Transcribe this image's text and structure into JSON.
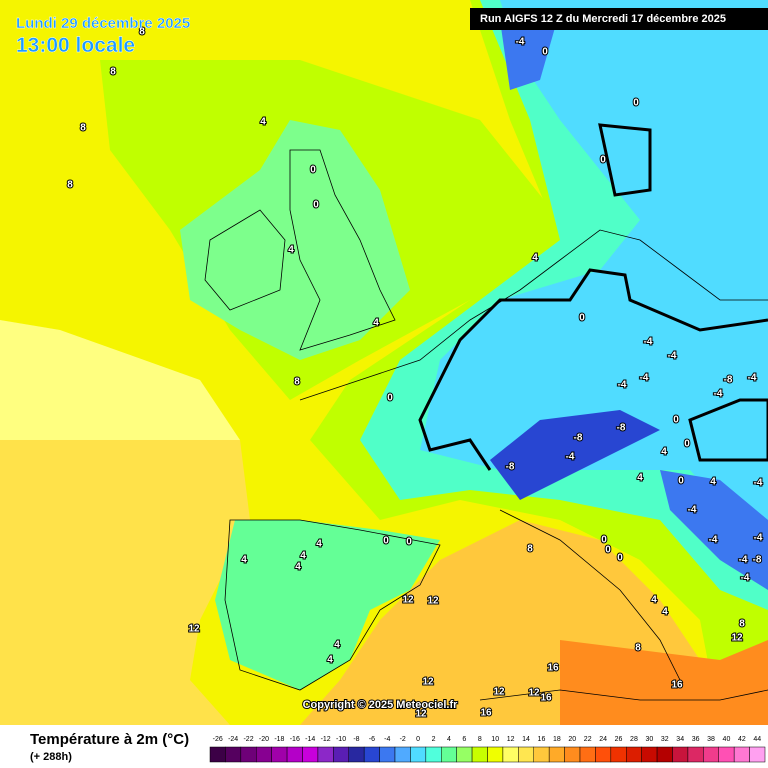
{
  "header": {
    "date": "Lundi 29 décembre 2025",
    "time": "13:00 locale",
    "run": "Run AIGFS 12 Z du Mercredi 17 décembre 2025",
    "copyright": "Copyright © 2025 Meteociel.fr"
  },
  "legend": {
    "title": "Température à 2m (°C)",
    "lead": "(+ 288h)",
    "ticks": [
      -26,
      -24,
      -22,
      -20,
      -18,
      -16,
      -14,
      -12,
      -10,
      -8,
      -6,
      -4,
      -2,
      0,
      2,
      4,
      6,
      8,
      10,
      12,
      14,
      16,
      18,
      20,
      22,
      24,
      26,
      28,
      30,
      32,
      34,
      36,
      38,
      40,
      42,
      44
    ],
    "colors": [
      "#3c0046",
      "#55005f",
      "#6e0078",
      "#870091",
      "#a000aa",
      "#b400c8",
      "#c800dc",
      "#8c28c8",
      "#5a1eb4",
      "#2828a0",
      "#2846d2",
      "#3c78f0",
      "#50aaff",
      "#50dcff",
      "#50ffdc",
      "#64ff96",
      "#96ff64",
      "#c8ff00",
      "#f0ff00",
      "#ffff64",
      "#ffe650",
      "#ffc83c",
      "#ffaa28",
      "#ff8c1e",
      "#ff6e14",
      "#ff500a",
      "#f03200",
      "#dc1e00",
      "#c80a00",
      "#b40000",
      "#c8143c",
      "#dc2864",
      "#f03c8c",
      "#ff50b4",
      "#ff78d2",
      "#ffa0f0"
    ]
  },
  "contour_labels": [
    8,
    8,
    8,
    8,
    4,
    0,
    0,
    4,
    4,
    8,
    -4,
    0,
    0,
    0,
    4,
    0,
    0,
    -4,
    -4,
    -4,
    -4,
    -4,
    -8,
    -4,
    -8,
    -8,
    -4,
    -8,
    0,
    0,
    4,
    4,
    0,
    4,
    -4,
    -4,
    -4,
    -4,
    -4,
    -4,
    -8,
    4,
    4,
    4,
    4,
    0,
    0,
    12,
    12,
    12,
    4,
    4,
    8,
    0,
    0,
    0,
    4,
    4,
    8,
    12,
    8,
    16,
    12,
    12,
    12,
    16,
    16,
    12,
    16
  ]
}
